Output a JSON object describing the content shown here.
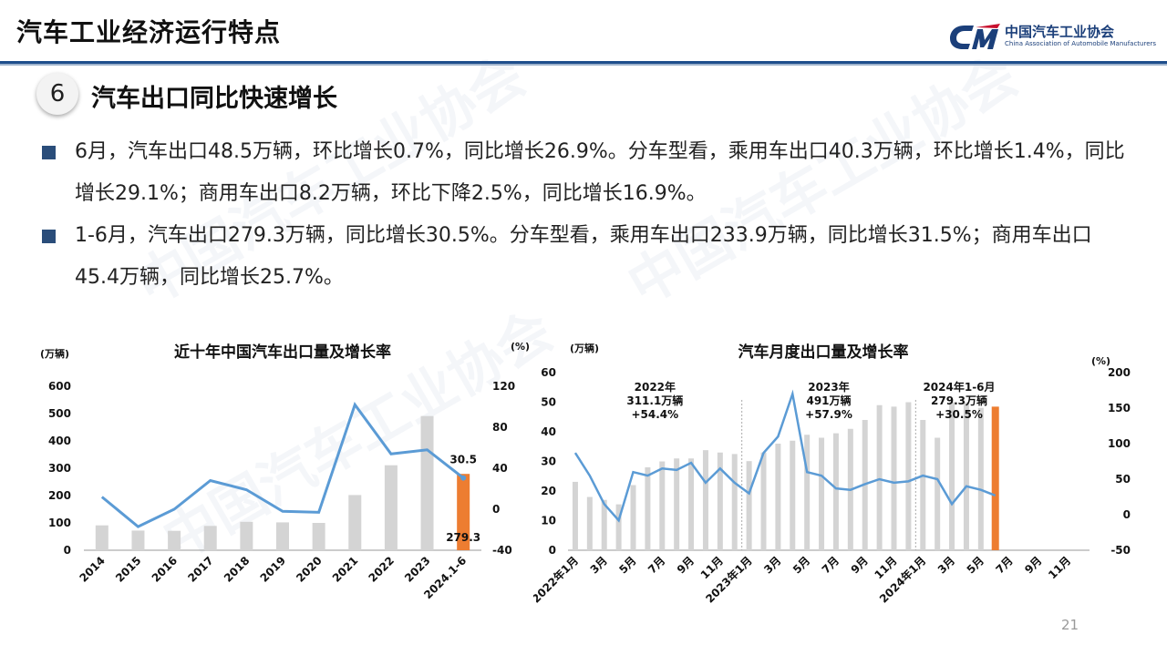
{
  "header": {
    "title": "汽车工业经济运行特点",
    "logo_cn": "中国汽车工业协会",
    "logo_en": "China Association of Automobile Manufacturers"
  },
  "section": {
    "number": "6",
    "title": "汽车出口同比快速增长"
  },
  "bullets": [
    "6月，汽车出口48.5万辆，环比增长0.7%，同比增长26.9%。分车型看，乘用车出口40.3万辆，环比增长1.4%，同比增长29.1%；商用车出口8.2万辆，环比下降2.5%，同比增长16.9%。",
    "1-6月，汽车出口279.3万辆，同比增长30.5%。分车型看，乘用车出口233.9万辆，同比增长31.5%；商用车出口45.4万辆，同比增长25.7%。"
  ],
  "page_number": "21",
  "colors": {
    "bar": "#d4d4d4",
    "highlight_bar": "#ed7d31",
    "line": "#5b9bd5",
    "accent": "#1f4e8c"
  },
  "chart_data": [
    {
      "type": "bar",
      "title": "近十年中国汽车出口量及增长率",
      "y_unit": "(万辆)",
      "y2_unit": "(%)",
      "categories": [
        "2014",
        "2015",
        "2016",
        "2017",
        "2018",
        "2019",
        "2020",
        "2021",
        "2022",
        "2023",
        "2024.1-6"
      ],
      "ylim": [
        0,
        600
      ],
      "yticks": [
        "0",
        "100",
        "200",
        "300",
        "400",
        "500",
        "600"
      ],
      "y2lim": [
        -40,
        120
      ],
      "y2ticks": [
        "-40",
        "0",
        "40",
        "80",
        "120"
      ],
      "series": [
        {
          "kind": "bar",
          "values": [
            91,
            72,
            71,
            89,
            104,
            102,
            100,
            202,
            311,
            491,
            279.3
          ]
        },
        {
          "kind": "line",
          "axis": "y2",
          "values": [
            12,
            -17,
            0,
            28,
            19,
            -2,
            -3,
            102,
            54,
            58,
            30.5
          ]
        }
      ],
      "highlight_index": 10,
      "labels": {
        "last_bar": "279.3",
        "last_rate": "30.5"
      }
    },
    {
      "type": "bar",
      "title": "汽车月度出口量及增长率",
      "y_unit": "(万辆)",
      "y2_unit": "(%)",
      "ylim": [
        0,
        60
      ],
      "yticks": [
        "0",
        "10",
        "20",
        "30",
        "40",
        "50",
        "60"
      ],
      "y2lim": [
        -50,
        200
      ],
      "y2ticks": [
        "-50",
        "0",
        "50",
        "100",
        "150",
        "200"
      ],
      "xtick_labels": [
        "2022年1月",
        "3月",
        "5月",
        "7月",
        "9月",
        "11月",
        "2023年1月",
        "3月",
        "5月",
        "7月",
        "9月",
        "11月",
        "2024年1月",
        "3月",
        "5月",
        "7月",
        "9月",
        "11月"
      ],
      "series": [
        {
          "kind": "bar",
          "values": [
            23.1,
            18.0,
            17.0,
            15.5,
            22.0,
            28.0,
            30.0,
            31.0,
            31.0,
            33.8,
            33.0,
            32.5,
            30.1,
            33.0,
            36.0,
            37.0,
            39.0,
            38.0,
            39.5,
            41.0,
            44.0,
            49.0,
            48.5,
            50.0,
            44.0,
            38.0,
            50.0,
            50.0,
            48.1,
            48.5
          ]
        },
        {
          "kind": "line",
          "axis": "y2",
          "values": [
            87,
            55,
            15,
            -8,
            60,
            55,
            65,
            63,
            73,
            45,
            65,
            45,
            30,
            87,
            110,
            170,
            60,
            55,
            37,
            35,
            43,
            50,
            45,
            47,
            55,
            50,
            15,
            40,
            35,
            27
          ]
        }
      ],
      "highlight_index": 29,
      "annotations": [
        {
          "lines": [
            "2022年",
            "311.1万辆",
            "+54.4%"
          ]
        },
        {
          "lines": [
            "2023年",
            "491万辆",
            "+57.9%"
          ]
        },
        {
          "lines": [
            "2024年1-6月",
            "279.3万辆",
            "+30.5%"
          ]
        }
      ]
    }
  ]
}
